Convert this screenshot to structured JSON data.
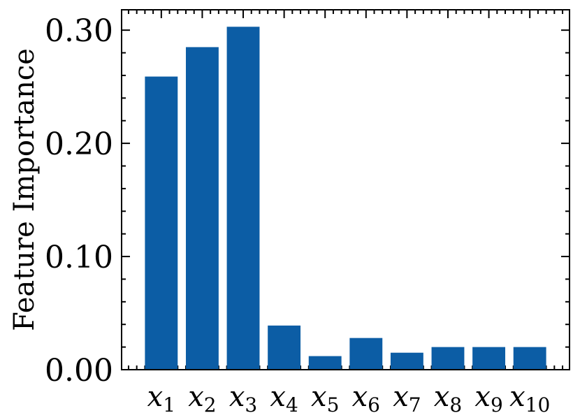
{
  "chart_data": {
    "type": "bar",
    "categories": [
      {
        "base": "x",
        "sub": "1"
      },
      {
        "base": "x",
        "sub": "2"
      },
      {
        "base": "x",
        "sub": "3"
      },
      {
        "base": "x",
        "sub": "4"
      },
      {
        "base": "x",
        "sub": "5"
      },
      {
        "base": "x",
        "sub": "6"
      },
      {
        "base": "x",
        "sub": "7"
      },
      {
        "base": "x",
        "sub": "8"
      },
      {
        "base": "x",
        "sub": "9"
      },
      {
        "base": "x",
        "sub": "10"
      }
    ],
    "values": [
      0.259,
      0.285,
      0.303,
      0.039,
      0.012,
      0.028,
      0.015,
      0.02,
      0.02,
      0.02
    ],
    "title": "",
    "xlabel": "",
    "ylabel": "Feature Importance",
    "ylim": [
      0,
      0.318
    ],
    "yticks": [
      0.0,
      0.1,
      0.2,
      0.3
    ],
    "ytick_labels": [
      "0.00",
      "0.10",
      "0.20",
      "0.30"
    ],
    "grid": false,
    "bar_color": "#0c5da5"
  }
}
